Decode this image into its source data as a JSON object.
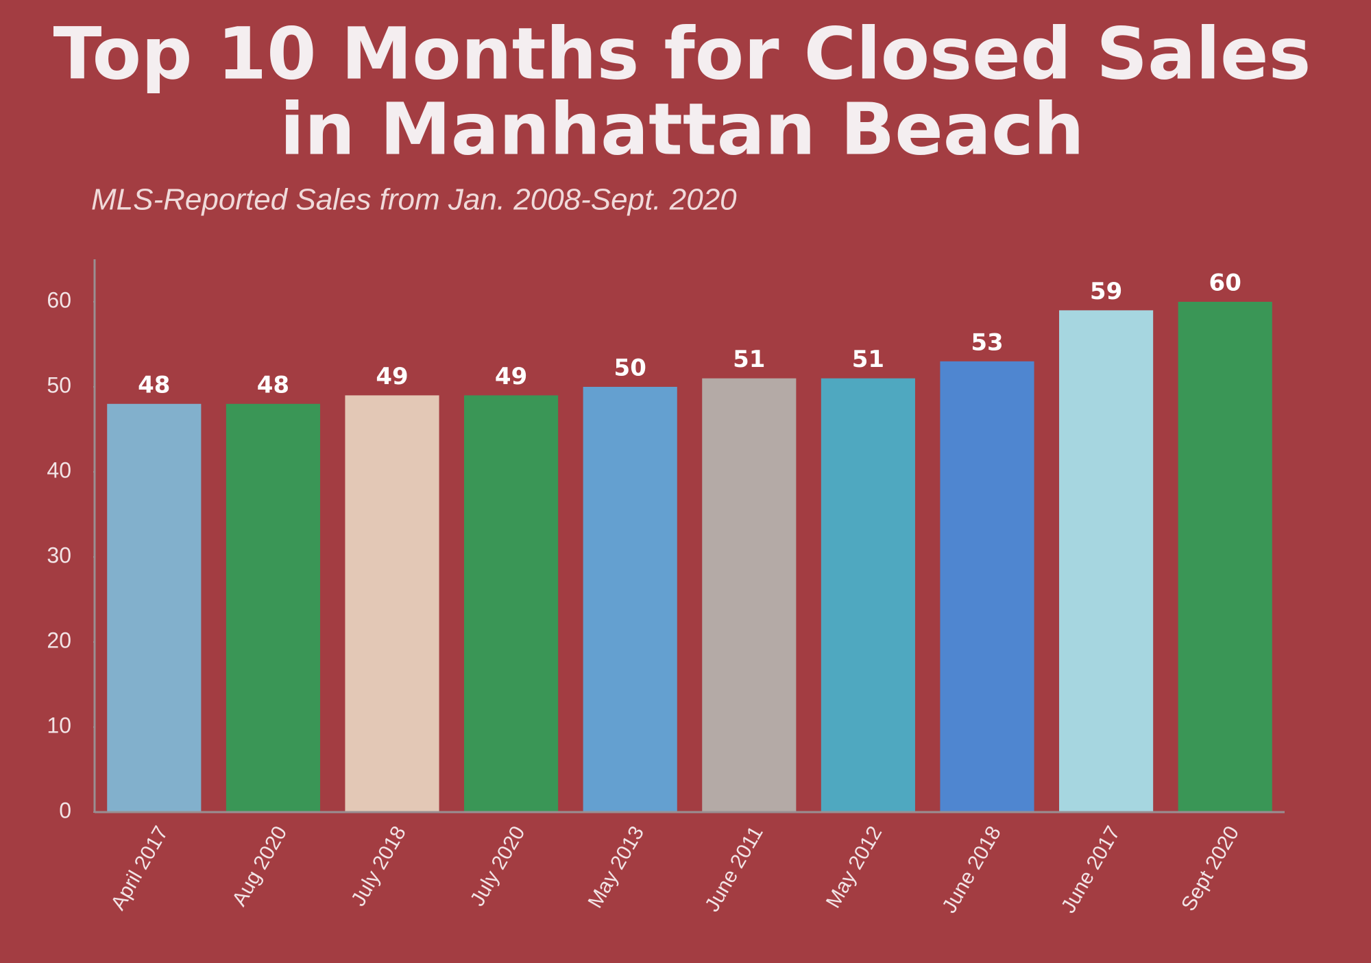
{
  "chart_data": {
    "type": "bar",
    "title": [
      "Top 10 Months for Closed Sales",
      "in Manhattan Beach"
    ],
    "subtitle": "MLS-Reported Sales from Jan. 2008-Sept. 2020",
    "categories": [
      "April 2017",
      "Aug 2020",
      "July 2018",
      "July 2020",
      "May 2013",
      "June 2011",
      "May 2012",
      "June 2018",
      "June 2017",
      "Sept 2020"
    ],
    "values": [
      48,
      48,
      49,
      49,
      50,
      51,
      51,
      53,
      59,
      60
    ],
    "colors": [
      "#82b0cc",
      "#3a9656",
      "#e3c8b6",
      "#3a9656",
      "#64a0d0",
      "#b4aaa6",
      "#4fa8c0",
      "#4f86d0",
      "#a6d6e0",
      "#3a9656"
    ],
    "ylim": [
      0,
      65
    ],
    "yticks": [
      0,
      10,
      20,
      30,
      40,
      50,
      60
    ]
  }
}
